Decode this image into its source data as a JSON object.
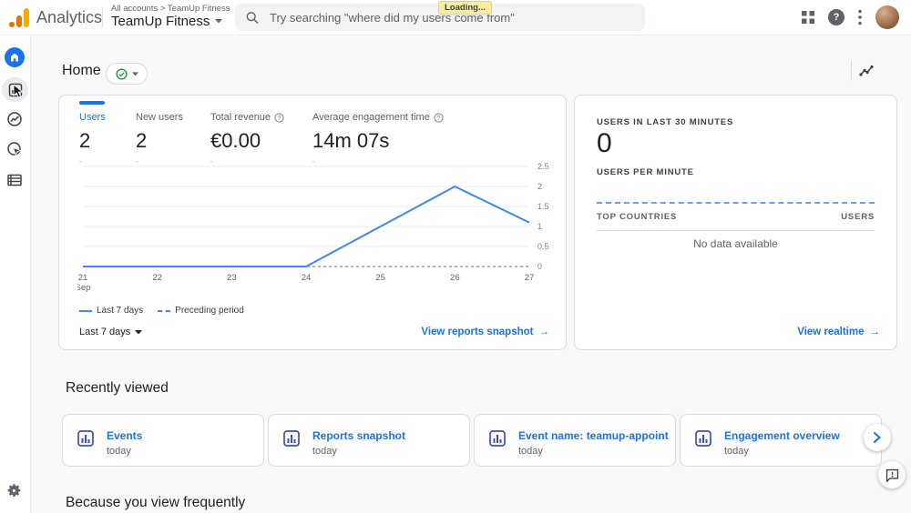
{
  "topbar": {
    "brand": "Analytics",
    "breadcrumb_small": "All accounts > TeamUp Fitness",
    "account_name": "TeamUp Fitness",
    "search_placeholder": "Try searching \"where did my users come from\"",
    "loading_badge": "Loading..."
  },
  "page": {
    "title": "Home",
    "next_section_title": "Because you view frequently"
  },
  "overview": {
    "metrics": [
      {
        "label": "Users",
        "value": "2",
        "delta": "-"
      },
      {
        "label": "New users",
        "value": "2",
        "delta": "-"
      },
      {
        "label": "Total revenue",
        "value": "€0.00",
        "delta": "-"
      },
      {
        "label": "Average engagement time",
        "value": "14m 07s",
        "delta": "-"
      }
    ],
    "range_label": "Last 7 days",
    "link_label": "View reports snapshot",
    "link_arrow": "→"
  },
  "chart_data": {
    "type": "line",
    "x": [
      "21",
      "22",
      "23",
      "24",
      "25",
      "26",
      "27"
    ],
    "x_sub": [
      "Sep",
      "",
      "",
      "",
      "",
      "",
      ""
    ],
    "series": [
      {
        "name": "Last 7 days",
        "style": "solid",
        "color": "#4285f4",
        "values": [
          0,
          0,
          0,
          0,
          1,
          2,
          1.1
        ]
      },
      {
        "name": "Preceding period",
        "style": "dashed",
        "color": "#9aa0a6",
        "values": [
          0,
          0,
          0,
          0,
          0,
          0,
          0
        ]
      }
    ],
    "ylim": [
      0,
      2.5
    ],
    "yticks": [
      0,
      0.5,
      1,
      1.5,
      2,
      2.5
    ],
    "legend_position": "bottom-left",
    "grid": true
  },
  "realtime": {
    "users_30_label": "USERS IN LAST 30 MINUTES",
    "users_30_value": "0",
    "per_minute_label": "USERS PER MINUTE",
    "countries_header": "TOP COUNTRIES",
    "users_header": "USERS",
    "empty_text": "No data available",
    "link_label": "View realtime",
    "link_arrow": "→"
  },
  "recently_viewed": {
    "title": "Recently viewed",
    "cards": [
      {
        "label": "Events",
        "sub": "today"
      },
      {
        "label": "Reports snapshot",
        "sub": "today"
      },
      {
        "label": "Event name: teamup-appointm...",
        "sub": "today"
      },
      {
        "label": "Engagement overview",
        "sub": "today"
      }
    ]
  },
  "colors": {
    "accent": "#1a73e8",
    "chart_line": "#4285f4",
    "logo_orange": "#f9ab00",
    "logo_dark_orange": "#e37400",
    "loading_bg": "#fcec9e",
    "background": "#f8f9fa"
  }
}
